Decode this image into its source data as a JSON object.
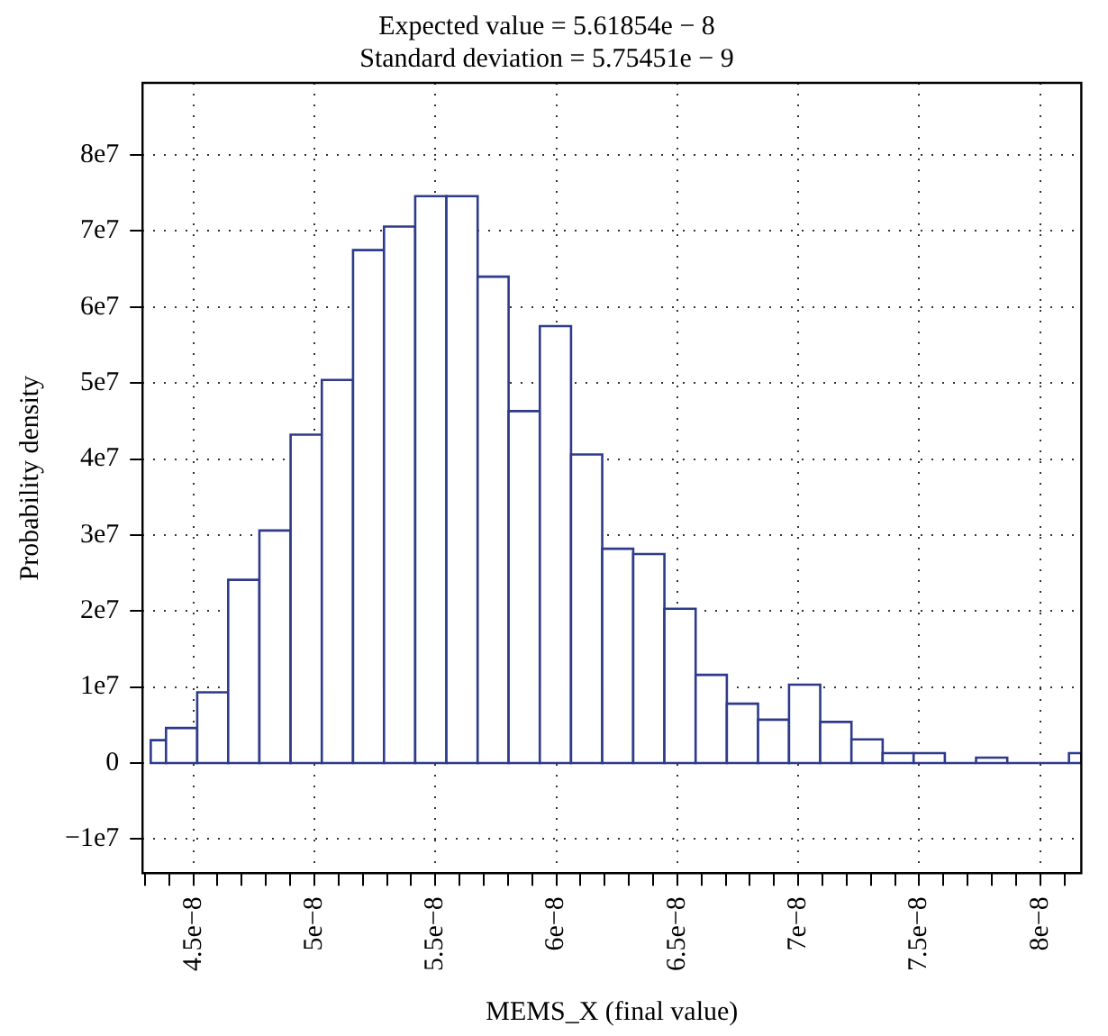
{
  "chart_data": {
    "type": "histogram",
    "title": [
      "Expected value = 5.61854e − 8",
      "Standard deviation = 5.75451e − 9"
    ],
    "xlabel": "MEMS_X (final value)",
    "ylabel": "Probability density",
    "bins": [
      4.324e-08,
      4.387e-08,
      4.516e-08,
      4.644e-08,
      4.773e-08,
      4.902e-08,
      5.031e-08,
      5.16e-08,
      5.288e-08,
      5.417e-08,
      5.546e-08,
      5.675e-08,
      5.803e-08,
      5.932e-08,
      6.061e-08,
      6.19e-08,
      6.318e-08,
      6.447e-08,
      6.576e-08,
      6.705e-08,
      6.834e-08,
      6.962e-08,
      7.091e-08,
      7.22e-08,
      7.349e-08,
      7.477e-08,
      7.606e-08,
      7.735e-08,
      7.864e-08,
      7.993e-08,
      8.119e-08,
      8.17e-08
    ],
    "values": [
      3000000.0,
      4600000.0,
      9300000.0,
      24100000.0,
      30600000.0,
      43200000.0,
      50400000.0,
      67500000.0,
      70600000.0,
      74600000.0,
      74600000.0,
      64000000.0,
      46300000.0,
      57500000.0,
      40600000.0,
      28200000.0,
      27500000.0,
      20300000.0,
      11600000.0,
      7800000.0,
      5700000.0,
      10300000.0,
      5400000.0,
      3100000.0,
      1300000.0,
      1300000.0,
      0,
      700000.0,
      0,
      0,
      1300000.0
    ],
    "color": "#2e3a8c",
    "xlim": [
      4.29e-08,
      8.17e-08
    ],
    "xticks": [
      {
        "value": 4.3e-08,
        "label": null
      },
      {
        "value": 4.4e-08,
        "label": null
      },
      {
        "value": 4.5e-08,
        "label": "4.5e−8"
      },
      {
        "value": 4.6e-08,
        "label": null
      },
      {
        "value": 4.7e-08,
        "label": null
      },
      {
        "value": 4.8e-08,
        "label": null
      },
      {
        "value": 4.9e-08,
        "label": null
      },
      {
        "value": 5e-08,
        "label": "5e−8"
      },
      {
        "value": 5.1e-08,
        "label": null
      },
      {
        "value": 5.2e-08,
        "label": null
      },
      {
        "value": 5.3e-08,
        "label": null
      },
      {
        "value": 5.4e-08,
        "label": null
      },
      {
        "value": 5.5e-08,
        "label": "5.5e−8"
      },
      {
        "value": 5.6e-08,
        "label": null
      },
      {
        "value": 5.7e-08,
        "label": null
      },
      {
        "value": 5.8e-08,
        "label": null
      },
      {
        "value": 5.9e-08,
        "label": null
      },
      {
        "value": 6e-08,
        "label": "6e−8"
      },
      {
        "value": 6.1e-08,
        "label": null
      },
      {
        "value": 6.2e-08,
        "label": null
      },
      {
        "value": 6.3e-08,
        "label": null
      },
      {
        "value": 6.4e-08,
        "label": null
      },
      {
        "value": 6.5e-08,
        "label": "6.5e−8"
      },
      {
        "value": 6.6e-08,
        "label": null
      },
      {
        "value": 6.7e-08,
        "label": null
      },
      {
        "value": 6.8e-08,
        "label": null
      },
      {
        "value": 6.9e-08,
        "label": null
      },
      {
        "value": 7e-08,
        "label": "7e−8"
      },
      {
        "value": 7.1e-08,
        "label": null
      },
      {
        "value": 7.2e-08,
        "label": null
      },
      {
        "value": 7.3e-08,
        "label": null
      },
      {
        "value": 7.4e-08,
        "label": null
      },
      {
        "value": 7.5e-08,
        "label": "7.5e−8"
      },
      {
        "value": 7.6e-08,
        "label": null
      },
      {
        "value": 7.7e-08,
        "label": null
      },
      {
        "value": 7.8e-08,
        "label": null
      },
      {
        "value": 7.9e-08,
        "label": null
      },
      {
        "value": 8e-08,
        "label": "8e−8"
      },
      {
        "value": 8.1e-08,
        "label": null
      }
    ],
    "ylim": [
      -14500000.0,
      89500000.0
    ],
    "yticks": [
      {
        "value": -10000000.0,
        "label": "−1e7"
      },
      0,
      {
        "value": 10000000.0,
        "label": "1e7"
      },
      {
        "value": 20000000.0,
        "label": "2e7"
      },
      {
        "value": 30000000.0,
        "label": "3e7"
      },
      {
        "value": 40000000.0,
        "label": "4e7"
      },
      {
        "value": 50000000.0,
        "label": "5e7"
      },
      {
        "value": 60000000.0,
        "label": "6e7"
      },
      {
        "value": 70000000.0,
        "label": "7e7"
      },
      {
        "value": 80000000.0,
        "label": "8e7"
      }
    ],
    "grid": true,
    "legend": false
  }
}
